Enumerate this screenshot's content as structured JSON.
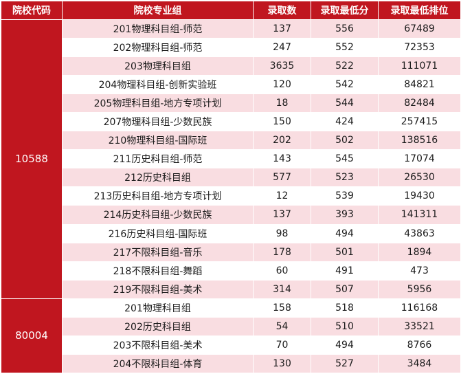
{
  "colors": {
    "header_bg": "#c0161f",
    "header_text": "#ffffff",
    "stripe": "#f9dde1",
    "plain": "#ffffff"
  },
  "headers": [
    "院校代码",
    "院校专业组",
    "录取数",
    "录取最低分",
    "录取最低排位"
  ],
  "schools": [
    {
      "code": "10588",
      "rows": [
        [
          "201物理科目组-师范",
          "137",
          "556",
          "67489"
        ],
        [
          "202物理科目组-师范",
          "247",
          "552",
          "72353"
        ],
        [
          "203物理科目组",
          "3635",
          "522",
          "111071"
        ],
        [
          "204物理科目组-创新实验班",
          "120",
          "542",
          "84821"
        ],
        [
          "205物理科目组-地方专项计划",
          "18",
          "544",
          "82484"
        ],
        [
          "207物理科目组-少数民族",
          "150",
          "424",
          "257415"
        ],
        [
          "210物理科目组-国际班",
          "202",
          "502",
          "138516"
        ],
        [
          "211历史科目组-师范",
          "143",
          "545",
          "17074"
        ],
        [
          "212历史科目组",
          "577",
          "523",
          "26530"
        ],
        [
          "213历史科目组-地方专项计划",
          "12",
          "539",
          "19430"
        ],
        [
          "214历史科目组-少数民族",
          "137",
          "393",
          "141311"
        ],
        [
          "216历史科目组-国际班",
          "98",
          "494",
          "43863"
        ],
        [
          "217不限科目组-音乐",
          "178",
          "501",
          "1894"
        ],
        [
          "218不限科目组-舞蹈",
          "60",
          "491",
          "473"
        ],
        [
          "219不限科目组-美术",
          "314",
          "507",
          "5956"
        ]
      ]
    },
    {
      "code": "80004",
      "rows": [
        [
          "201物理科目组",
          "158",
          "518",
          "116168"
        ],
        [
          "202历史科目组",
          "54",
          "510",
          "33521"
        ],
        [
          "203不限科目组-美术",
          "70",
          "494",
          "8766"
        ],
        [
          "204不限科目组-体育",
          "130",
          "527",
          "3484"
        ]
      ]
    }
  ]
}
